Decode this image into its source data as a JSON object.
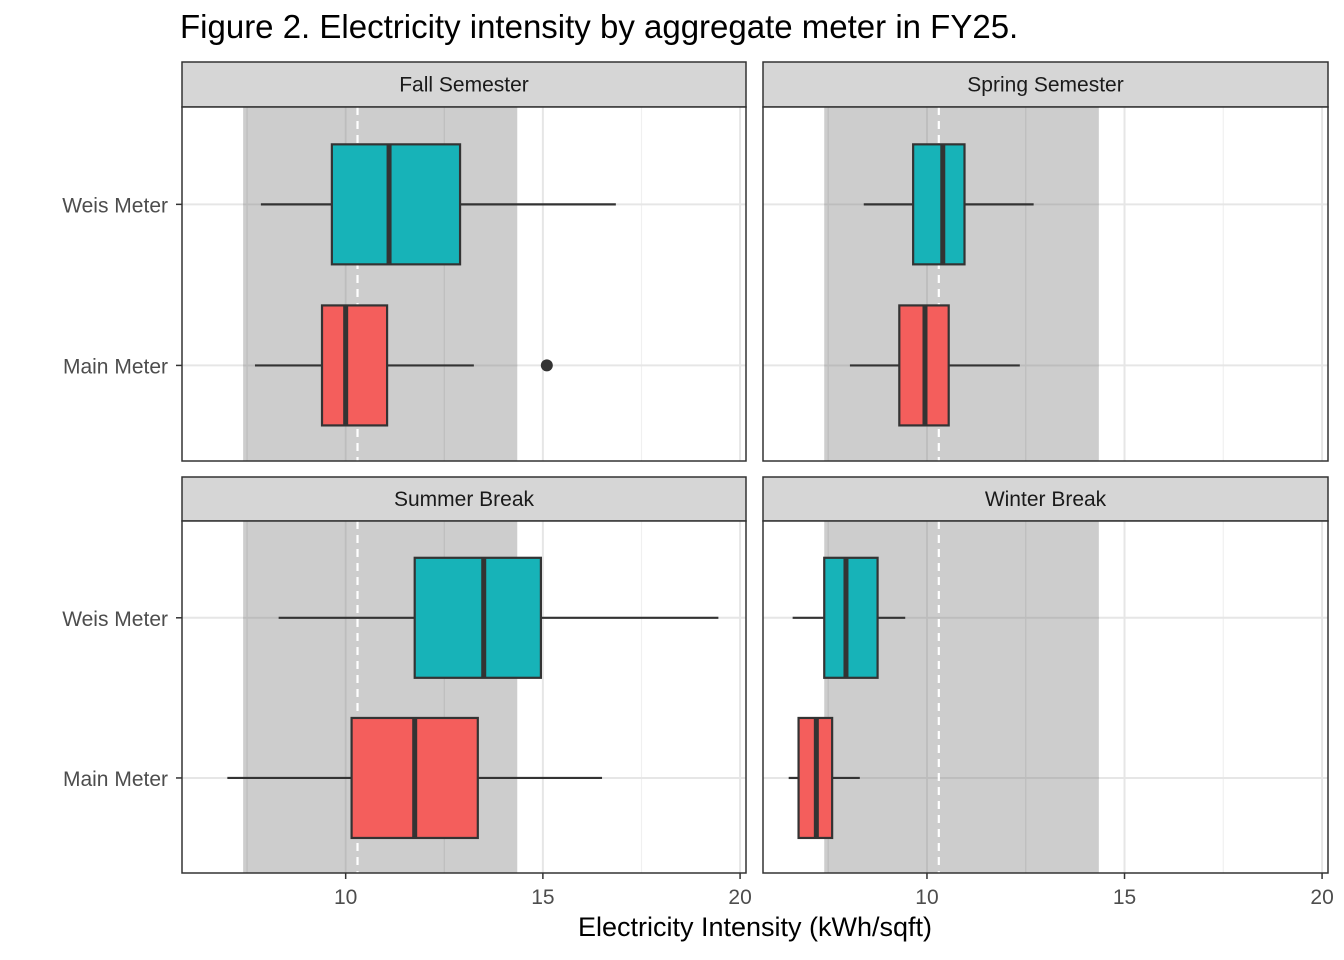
{
  "chart_data": {
    "type": "boxplot",
    "title": "Figure 2. Electricity intensity by aggregate meter in FY25.",
    "xlabel": "Electricity Intensity (kWh/sqft)",
    "ylabel": "",
    "xlim": [
      5.85,
      20.15
    ],
    "x_ticks": [
      10,
      15,
      20
    ],
    "categories": [
      "Weis Meter",
      "Main Meter"
    ],
    "grid": true,
    "reference_band": [
      7.4,
      14.35
    ],
    "reference_line": 10.3,
    "colors": {
      "Weis Meter": "#17b3b8",
      "Main Meter": "#f45e5c",
      "band": "#c8c8c8",
      "strip": "#d6d6d6"
    },
    "panels": [
      {
        "name": "Fall Semester",
        "boxes": [
          {
            "category": "Weis Meter",
            "min": 7.85,
            "q1": 9.65,
            "median": 11.1,
            "q3": 12.9,
            "max": 16.85,
            "outliers": []
          },
          {
            "category": "Main Meter",
            "min": 7.7,
            "q1": 9.4,
            "median": 10.0,
            "q3": 11.05,
            "max": 13.25,
            "outliers": [
              15.1
            ]
          }
        ]
      },
      {
        "name": "Spring Semester",
        "boxes": [
          {
            "category": "Weis Meter",
            "min": 8.4,
            "q1": 9.65,
            "median": 10.4,
            "q3": 10.95,
            "max": 12.7,
            "outliers": []
          },
          {
            "category": "Main Meter",
            "min": 8.05,
            "q1": 9.3,
            "median": 9.95,
            "q3": 10.55,
            "max": 12.35,
            "outliers": []
          }
        ]
      },
      {
        "name": "Summer Break",
        "boxes": [
          {
            "category": "Weis Meter",
            "min": 8.3,
            "q1": 11.75,
            "median": 13.5,
            "q3": 14.95,
            "max": 19.45,
            "outliers": []
          },
          {
            "category": "Main Meter",
            "min": 7.0,
            "q1": 10.15,
            "median": 11.75,
            "q3": 13.35,
            "max": 16.5,
            "outliers": []
          }
        ]
      },
      {
        "name": "Winter Break",
        "boxes": [
          {
            "category": "Weis Meter",
            "min": 6.6,
            "q1": 7.4,
            "median": 7.95,
            "q3": 8.75,
            "max": 9.45,
            "outliers": []
          },
          {
            "category": "Main Meter",
            "min": 6.5,
            "q1": 6.75,
            "median": 7.2,
            "q3": 7.6,
            "max": 8.3,
            "outliers": []
          }
        ]
      }
    ]
  }
}
